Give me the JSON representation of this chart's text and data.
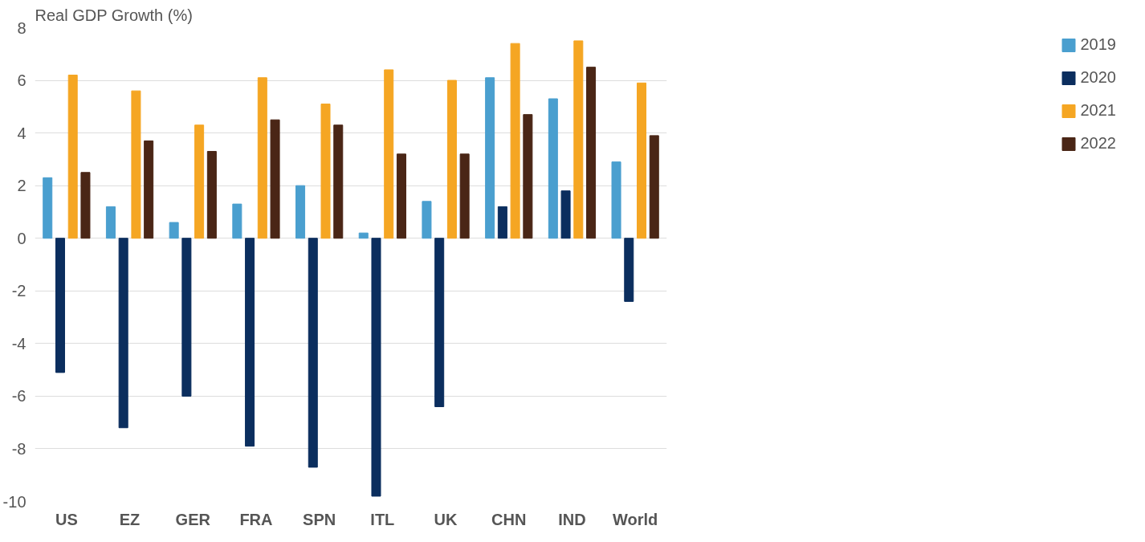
{
  "chart_data": {
    "type": "bar",
    "ylabel": "Real GDP Growth (%)",
    "categories": [
      "US",
      "EZ",
      "GER",
      "FRA",
      "SPN",
      "ITL",
      "UK",
      "CHN",
      "IND",
      "World"
    ],
    "series": [
      {
        "name": "2019",
        "color": "#4a9fcf",
        "values": [
          2.3,
          1.2,
          0.6,
          1.3,
          2.0,
          0.2,
          1.4,
          6.1,
          5.3,
          2.9
        ]
      },
      {
        "name": "2020",
        "color": "#0b2e5e",
        "values": [
          -5.1,
          -7.2,
          -6.0,
          -7.9,
          -8.7,
          -9.8,
          -6.4,
          1.2,
          1.8,
          -2.4
        ]
      },
      {
        "name": "2021",
        "color": "#f5a623",
        "values": [
          6.2,
          5.6,
          4.3,
          6.1,
          5.1,
          6.4,
          6.0,
          7.4,
          7.5,
          5.9
        ]
      },
      {
        "name": "2022",
        "color": "#4a2616",
        "values": [
          2.5,
          3.7,
          3.3,
          4.5,
          4.3,
          3.2,
          3.2,
          4.7,
          6.5,
          3.9
        ]
      }
    ],
    "ylim": [
      -10,
      8
    ],
    "yticks": [
      -10,
      -8,
      -6,
      -4,
      -2,
      0,
      2,
      4,
      6,
      8
    ],
    "grid": "y",
    "legend": "right"
  }
}
